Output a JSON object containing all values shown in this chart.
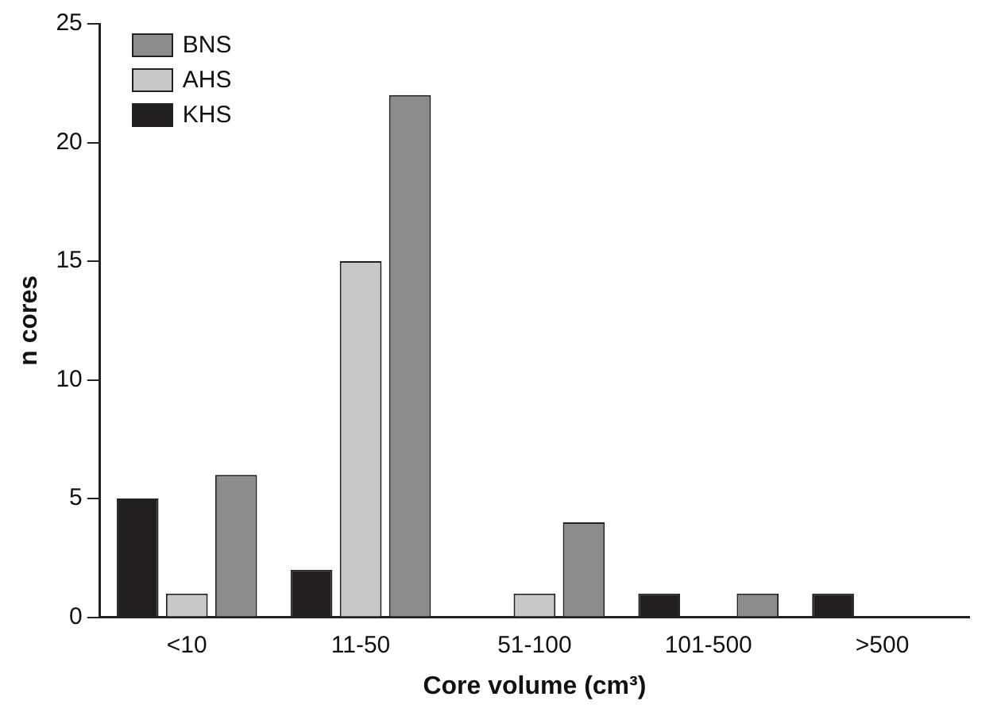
{
  "chart_data": {
    "type": "bar",
    "xlabel": "Core volume (cm³)",
    "ylabel": "n cores",
    "categories": [
      "<10",
      "11-50",
      "51-100",
      "101-500",
      ">500"
    ],
    "series": [
      {
        "name": "KHS",
        "color": "#231f20",
        "values": [
          5,
          2,
          0,
          1,
          1
        ]
      },
      {
        "name": "AHS",
        "color": "#c8c8ca",
        "values": [
          1,
          15,
          1,
          0,
          0
        ]
      },
      {
        "name": "BNS",
        "color": "#8c8c8e",
        "values": [
          6,
          22,
          4,
          1,
          0
        ]
      }
    ],
    "ylim": [
      0,
      25
    ],
    "yticks": [
      0,
      5,
      10,
      15,
      20,
      25
    ],
    "grid": false,
    "legend": "top left"
  }
}
